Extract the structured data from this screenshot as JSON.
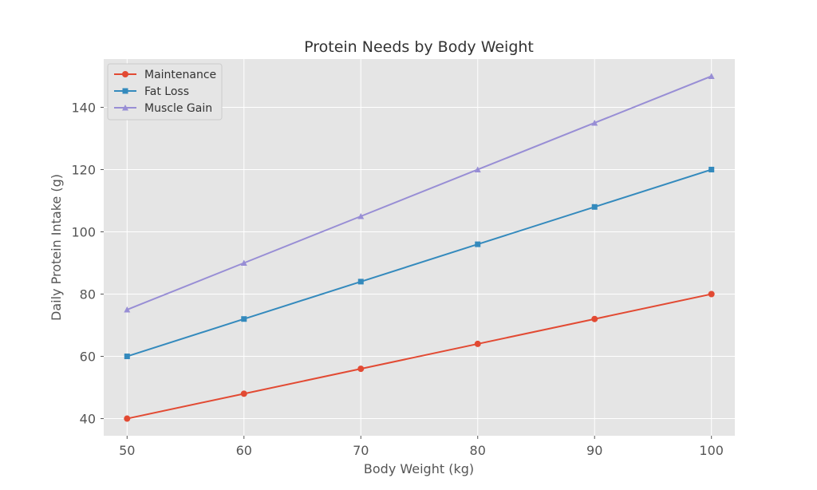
{
  "chart_data": {
    "type": "line",
    "title": "Protein Needs by Body Weight",
    "xlabel": "Body Weight (kg)",
    "ylabel": "Daily Protein Intake (g)",
    "x": [
      50,
      60,
      70,
      80,
      90,
      100
    ],
    "xlim": [
      48,
      102
    ],
    "ylim": [
      34.5,
      155.5
    ],
    "x_ticks": [
      50,
      60,
      70,
      80,
      90,
      100
    ],
    "y_ticks": [
      40,
      60,
      80,
      100,
      120,
      140
    ],
    "grid": true,
    "legend_position": "top-left",
    "series": [
      {
        "name": "Maintenance",
        "values": [
          40,
          48,
          56,
          64,
          72,
          80
        ],
        "color": "#e24a33",
        "marker": "circle"
      },
      {
        "name": "Fat Loss",
        "values": [
          60,
          72,
          84,
          96,
          108,
          120
        ],
        "color": "#348abd",
        "marker": "square"
      },
      {
        "name": "Muscle Gain",
        "values": [
          75,
          90,
          105,
          120,
          135,
          150
        ],
        "color": "#988ed5",
        "marker": "triangle"
      }
    ],
    "colors": {
      "plot_background": "#e5e5e5",
      "grid": "#ffffff"
    }
  }
}
